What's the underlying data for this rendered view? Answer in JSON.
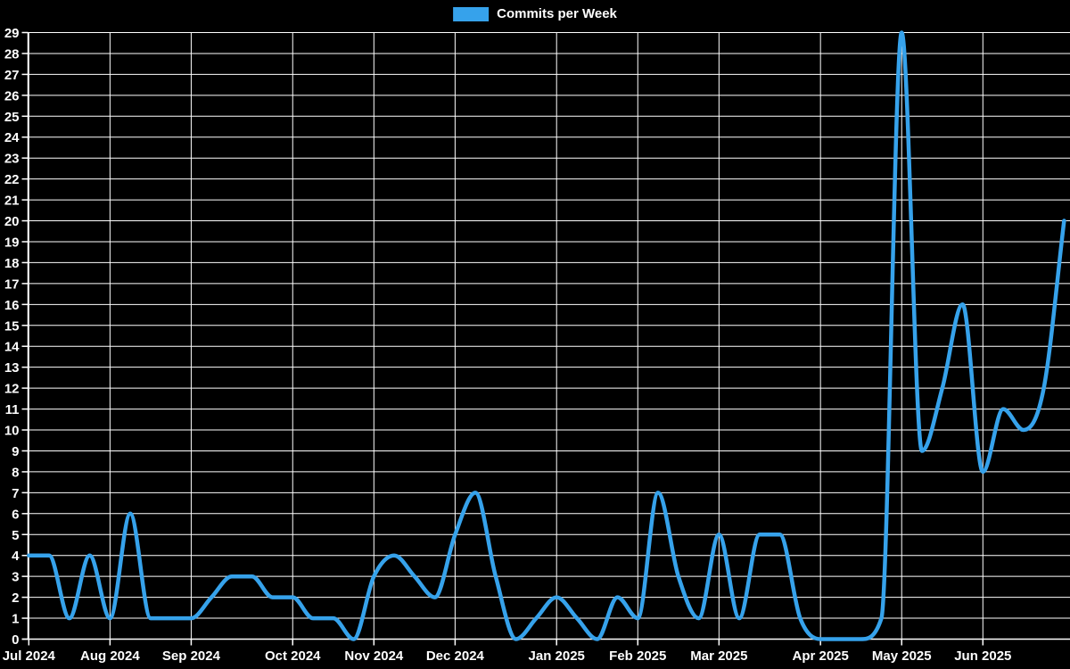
{
  "legend": {
    "label": "Commits per Week"
  },
  "colors": {
    "background": "#000000",
    "line": "#36a2eb",
    "grid": "#ffffff",
    "text": "#ffffff"
  },
  "chart_data": {
    "type": "line",
    "title": "Commits per Week",
    "grid": "on",
    "smooth": true,
    "legend_position": "top-center",
    "x_axis": {
      "tick_labels": [
        "Jul 2024",
        "Aug 2024",
        "Sep 2024",
        "Oct 2024",
        "Nov 2024",
        "Dec 2024",
        "Jan 2025",
        "Feb 2025",
        "Mar 2025",
        "Apr 2025",
        "May 2025",
        "Jun 2025"
      ],
      "tick_week_indices": [
        0,
        4,
        8,
        13,
        17,
        21,
        26,
        30,
        34,
        39,
        43,
        47
      ]
    },
    "y_axis": {
      "min": 0,
      "max": 29,
      "tick_step": 1
    },
    "series": [
      {
        "name": "Commits per Week",
        "color": "#36a2eb",
        "x_unit": "week_index",
        "values": [
          4,
          4,
          1,
          4,
          1,
          6,
          1,
          1,
          1,
          2,
          3,
          3,
          2,
          2,
          1,
          1,
          0,
          3,
          4,
          3,
          2,
          5,
          7,
          3,
          0,
          1,
          2,
          1,
          0,
          2,
          1,
          7,
          3,
          1,
          5,
          1,
          5,
          5,
          1,
          0,
          0,
          0,
          1,
          29,
          9,
          12,
          16,
          8,
          11,
          10,
          12,
          20
        ]
      }
    ]
  }
}
